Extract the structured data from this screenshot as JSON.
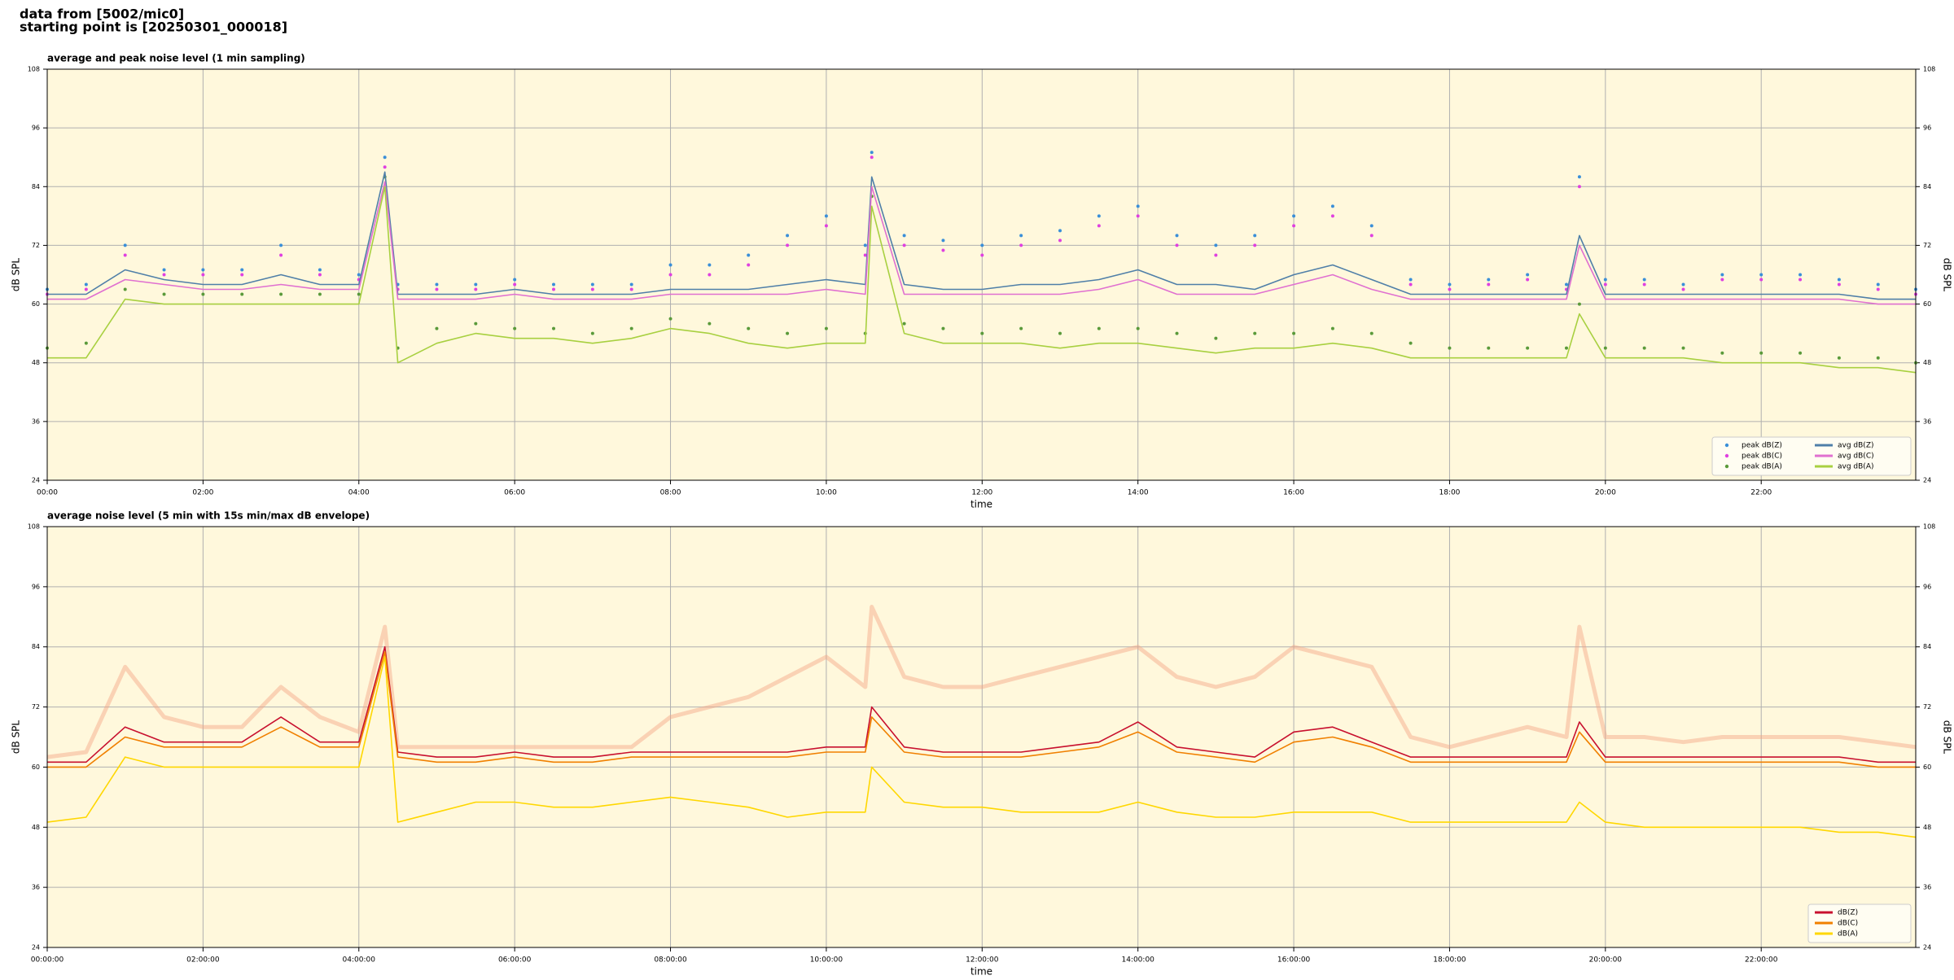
{
  "header": {
    "line1": "data from [5002/mic0]",
    "line2": "starting point is [20250301_000018]"
  },
  "chart_data": [
    {
      "type": "line",
      "title": "average and peak noise level (1 min sampling)",
      "xlabel": "time",
      "ylabel": "dB SPL",
      "x": [
        "00:00",
        "00:30",
        "01:00",
        "01:30",
        "02:00",
        "02:30",
        "03:00",
        "03:30",
        "04:00",
        "04:20",
        "04:30",
        "05:00",
        "05:30",
        "06:00",
        "06:30",
        "07:00",
        "07:30",
        "08:00",
        "08:30",
        "09:00",
        "09:30",
        "10:00",
        "10:30",
        "10:35",
        "11:00",
        "11:30",
        "12:00",
        "12:30",
        "13:00",
        "13:30",
        "14:00",
        "14:30",
        "15:00",
        "15:30",
        "16:00",
        "16:30",
        "17:00",
        "17:30",
        "18:00",
        "18:30",
        "19:00",
        "19:30",
        "19:40",
        "20:00",
        "20:30",
        "21:00",
        "21:30",
        "22:00",
        "22:30",
        "23:00",
        "23:30",
        "23:59"
      ],
      "xlim": [
        "00:00",
        "23:59"
      ],
      "xticks": [
        "00:00",
        "02:00",
        "04:00",
        "06:00",
        "08:00",
        "10:00",
        "12:00",
        "14:00",
        "16:00",
        "18:00",
        "20:00",
        "22:00"
      ],
      "ylim": [
        24,
        108
      ],
      "yticks": [
        24,
        36,
        48,
        60,
        72,
        84,
        96,
        108
      ],
      "grid": true,
      "legend": "lower right",
      "legend_columns": 2,
      "background": "#fff8dc",
      "series": [
        {
          "name": "peak dB(Z)",
          "style": "dots",
          "color": "#3a8fd8",
          "values": [
            63,
            64,
            72,
            67,
            67,
            67,
            72,
            67,
            66,
            90,
            64,
            64,
            64,
            65,
            64,
            64,
            64,
            68,
            68,
            70,
            74,
            78,
            72,
            91,
            74,
            73,
            72,
            74,
            75,
            78,
            80,
            74,
            72,
            74,
            78,
            80,
            76,
            65,
            64,
            65,
            66,
            64,
            86,
            65,
            65,
            64,
            66,
            66,
            66,
            65,
            64,
            63
          ]
        },
        {
          "name": "peak dB(C)",
          "style": "dots",
          "color": "#e040e0",
          "values": [
            62,
            63,
            70,
            66,
            66,
            66,
            70,
            66,
            65,
            88,
            63,
            63,
            63,
            64,
            63,
            63,
            63,
            66,
            66,
            68,
            72,
            76,
            70,
            90,
            72,
            71,
            70,
            72,
            73,
            76,
            78,
            72,
            70,
            72,
            76,
            78,
            74,
            64,
            63,
            64,
            65,
            63,
            84,
            64,
            64,
            63,
            65,
            65,
            65,
            64,
            63,
            62
          ]
        },
        {
          "name": "peak dB(A)",
          "style": "dots",
          "color": "#5a9a3a",
          "values": [
            51,
            52,
            63,
            62,
            62,
            62,
            62,
            62,
            62,
            86,
            51,
            55,
            56,
            55,
            55,
            54,
            55,
            57,
            56,
            55,
            54,
            55,
            54,
            82,
            56,
            55,
            54,
            55,
            54,
            55,
            55,
            54,
            53,
            54,
            54,
            55,
            54,
            52,
            51,
            51,
            51,
            51,
            60,
            51,
            51,
            51,
            50,
            50,
            50,
            49,
            49,
            48
          ]
        },
        {
          "name": "avg dB(Z)",
          "style": "line",
          "color": "#4f7fa8",
          "values": [
            62,
            62,
            67,
            65,
            64,
            64,
            66,
            64,
            64,
            87,
            62,
            62,
            62,
            63,
            62,
            62,
            62,
            63,
            63,
            63,
            64,
            65,
            64,
            86,
            64,
            63,
            63,
            64,
            64,
            65,
            67,
            64,
            64,
            63,
            66,
            68,
            65,
            62,
            62,
            62,
            62,
            62,
            74,
            62,
            62,
            62,
            62,
            62,
            62,
            62,
            61,
            61
          ]
        },
        {
          "name": "avg dB(C)",
          "style": "line",
          "color": "#e070d0",
          "values": [
            61,
            61,
            65,
            64,
            63,
            63,
            64,
            63,
            63,
            85,
            61,
            61,
            61,
            62,
            61,
            61,
            61,
            62,
            62,
            62,
            62,
            63,
            62,
            84,
            62,
            62,
            62,
            62,
            62,
            63,
            65,
            62,
            62,
            62,
            64,
            66,
            63,
            61,
            61,
            61,
            61,
            61,
            72,
            61,
            61,
            61,
            61,
            61,
            61,
            61,
            60,
            60
          ]
        },
        {
          "name": "avg dB(A)",
          "style": "line",
          "color": "#a8d040",
          "values": [
            49,
            49,
            61,
            60,
            60,
            60,
            60,
            60,
            60,
            84,
            48,
            52,
            54,
            53,
            53,
            52,
            53,
            55,
            54,
            52,
            51,
            52,
            52,
            80,
            54,
            52,
            52,
            52,
            51,
            52,
            52,
            51,
            50,
            51,
            51,
            52,
            51,
            49,
            49,
            49,
            49,
            49,
            58,
            49,
            49,
            49,
            48,
            48,
            48,
            47,
            47,
            46
          ]
        }
      ]
    },
    {
      "type": "line",
      "title": "average noise level (5 min with 15s min/max dB envelope)",
      "xlabel": "time",
      "ylabel": "dB SPL",
      "x": [
        "00:00",
        "00:30",
        "01:00",
        "01:30",
        "02:00",
        "02:30",
        "03:00",
        "03:30",
        "04:00",
        "04:20",
        "04:30",
        "05:00",
        "05:30",
        "06:00",
        "06:30",
        "07:00",
        "07:30",
        "08:00",
        "08:30",
        "09:00",
        "09:30",
        "10:00",
        "10:30",
        "10:35",
        "11:00",
        "11:30",
        "12:00",
        "12:30",
        "13:00",
        "13:30",
        "14:00",
        "14:30",
        "15:00",
        "15:30",
        "16:00",
        "16:30",
        "17:00",
        "17:30",
        "18:00",
        "18:30",
        "19:00",
        "19:30",
        "19:40",
        "20:00",
        "20:30",
        "21:00",
        "21:30",
        "22:00",
        "22:30",
        "23:00",
        "23:30",
        "23:59"
      ],
      "xlim": [
        "00:00:00",
        "23:59:00"
      ],
      "xticks": [
        "00:00:00",
        "02:00:00",
        "04:00:00",
        "06:00:00",
        "08:00:00",
        "10:00:00",
        "12:00:00",
        "14:00:00",
        "16:00:00",
        "18:00:00",
        "20:00:00",
        "22:00:00"
      ],
      "ylim": [
        24,
        108
      ],
      "yticks": [
        24,
        36,
        48,
        60,
        72,
        84,
        96,
        108
      ],
      "grid": true,
      "legend": "lower right",
      "legend_columns": 1,
      "background": "#fff8dc",
      "envelope": {
        "color": "#f4a582",
        "values": [
          62,
          63,
          80,
          70,
          68,
          68,
          76,
          70,
          67,
          88,
          64,
          64,
          64,
          64,
          64,
          64,
          64,
          70,
          72,
          74,
          78,
          82,
          76,
          92,
          78,
          76,
          76,
          78,
          80,
          82,
          84,
          78,
          76,
          78,
          84,
          82,
          80,
          66,
          64,
          66,
          68,
          66,
          88,
          66,
          66,
          65,
          66,
          66,
          66,
          66,
          65,
          64
        ]
      },
      "series": [
        {
          "name": "dB(Z)",
          "style": "line",
          "color": "#c8102e",
          "values": [
            61,
            61,
            68,
            65,
            65,
            65,
            70,
            65,
            65,
            84,
            63,
            62,
            62,
            63,
            62,
            62,
            63,
            63,
            63,
            63,
            63,
            64,
            64,
            72,
            64,
            63,
            63,
            63,
            64,
            65,
            69,
            64,
            63,
            62,
            67,
            68,
            65,
            62,
            62,
            62,
            62,
            62,
            69,
            62,
            62,
            62,
            62,
            62,
            62,
            62,
            61,
            61
          ]
        },
        {
          "name": "dB(C)",
          "style": "line",
          "color": "#f08000",
          "values": [
            60,
            60,
            66,
            64,
            64,
            64,
            68,
            64,
            64,
            83,
            62,
            61,
            61,
            62,
            61,
            61,
            62,
            62,
            62,
            62,
            62,
            63,
            63,
            70,
            63,
            62,
            62,
            62,
            63,
            64,
            67,
            63,
            62,
            61,
            65,
            66,
            64,
            61,
            61,
            61,
            61,
            61,
            67,
            61,
            61,
            61,
            61,
            61,
            61,
            61,
            60,
            60
          ]
        },
        {
          "name": "dB(A)",
          "style": "line",
          "color": "#ffd700",
          "values": [
            49,
            50,
            62,
            60,
            60,
            60,
            60,
            60,
            60,
            82,
            49,
            51,
            53,
            53,
            52,
            52,
            53,
            54,
            53,
            52,
            50,
            51,
            51,
            60,
            53,
            52,
            52,
            51,
            51,
            51,
            53,
            51,
            50,
            50,
            51,
            51,
            51,
            49,
            49,
            49,
            49,
            49,
            53,
            49,
            48,
            48,
            48,
            48,
            48,
            47,
            47,
            46
          ]
        }
      ]
    }
  ]
}
